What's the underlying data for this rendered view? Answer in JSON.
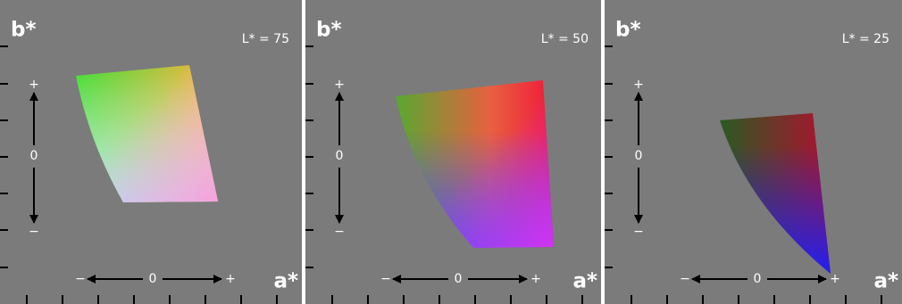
{
  "panels": [
    {
      "b_label": "b*",
      "l_label": "L* = 75",
      "a_label": "a*",
      "b_axis": [
        "+",
        "0",
        "−"
      ],
      "a_axis": [
        "−",
        "0",
        "+"
      ]
    },
    {
      "b_label": "b*",
      "l_label": "L* = 50",
      "a_label": "a*",
      "b_axis": [
        "+",
        "0",
        "−"
      ],
      "a_axis": [
        "−",
        "0",
        "+"
      ]
    },
    {
      "b_label": "b*",
      "l_label": "L* = 25",
      "a_label": "a*",
      "b_axis": [
        "+",
        "0",
        "−"
      ],
      "a_axis": [
        "−",
        "0",
        "+"
      ]
    }
  ]
}
